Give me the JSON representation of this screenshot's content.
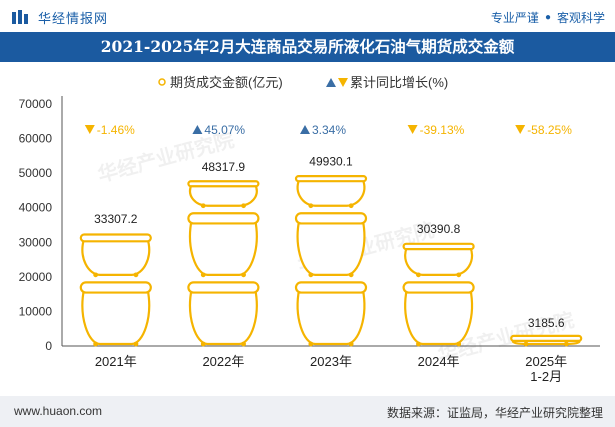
{
  "header": {
    "brand": "华经情报网",
    "tagline_left": "专业严谨",
    "tagline_right": "客观科学"
  },
  "title": "2021-2025年2月大连商品交易所液化石油气期货成交金额",
  "footer": {
    "url": "www.huaon.com",
    "source": "数据来源：证监局，华经产业研究院整理"
  },
  "watermark": "华经产业研究院",
  "colors": {
    "brand_blue": "#1b5aa0",
    "icon_gold": "#f5b400",
    "up_arrow": "#3a6ea5",
    "down_arrow": "#f5b400"
  },
  "chart_data": {
    "type": "bar",
    "categories": [
      "2021年",
      "2022年",
      "2023年",
      "2024年",
      "2025年\n1-2月"
    ],
    "series": [
      {
        "name": "期货成交金额(亿元)",
        "values": [
          33307.2,
          48317.9,
          49930.1,
          30390.8,
          3185.6
        ]
      },
      {
        "name": "累计同比增长(%)",
        "values": [
          -1.46,
          45.07,
          3.34,
          -39.13,
          -58.25
        ]
      }
    ],
    "value_labels": [
      "33307.2",
      "48317.9",
      "49930.1",
      "30390.8",
      "3185.6"
    ],
    "growth_labels": [
      "-1.46%",
      "45.07%",
      "3.34%",
      "-39.13%",
      "-58.25%"
    ],
    "ylim": [
      0,
      70000
    ],
    "yticks": [
      0,
      10000,
      20000,
      30000,
      40000,
      50000,
      60000,
      70000
    ],
    "legend_position": "top-center"
  }
}
